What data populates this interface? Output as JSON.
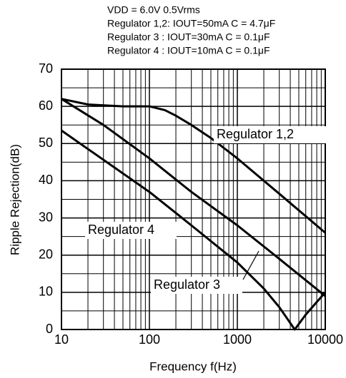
{
  "chart_data": {
    "type": "line",
    "conditions": [
      "VDD = 6.0V   0.5Vrms",
      "Regulator 1,2: IOUT=50mA C = 4.7μF",
      "Regulator 3   : IOUT=30mA C = 0.1μF",
      "Regulator 4   : IOUT=10mA C = 0.1μF"
    ],
    "x_label": "Frequency f(Hz)",
    "y_label": "Ripple Rejection(dB)",
    "x_log": true,
    "grid": true,
    "xlim": [
      10,
      10000
    ],
    "ylim": [
      0,
      70
    ],
    "xticks": [
      10,
      100,
      1000,
      10000
    ],
    "yticks": [
      0,
      10,
      20,
      30,
      40,
      50,
      60,
      70
    ],
    "series": [
      {
        "name": "Regulator 1,2",
        "color": "#000000",
        "x": [
          10,
          20,
          50,
          100,
          150,
          200,
          300,
          500,
          1000,
          3000,
          10000
        ],
        "values": [
          62,
          60.5,
          60,
          60,
          59,
          57.5,
          55,
          51.5,
          46,
          36.5,
          26
        ]
      },
      {
        "name": "Regulator 3",
        "color": "#000000",
        "x": [
          10,
          30,
          100,
          300,
          1000,
          3000,
          10000
        ],
        "values": [
          62,
          55,
          46,
          37,
          28,
          19,
          9
        ]
      },
      {
        "name": "Regulator 4",
        "color": "#000000",
        "x": [
          10,
          100,
          300,
          1000,
          2000,
          3000,
          4500,
          6000,
          10000
        ],
        "values": [
          53.5,
          37,
          28,
          18,
          11,
          6,
          0,
          4,
          10
        ]
      }
    ]
  }
}
